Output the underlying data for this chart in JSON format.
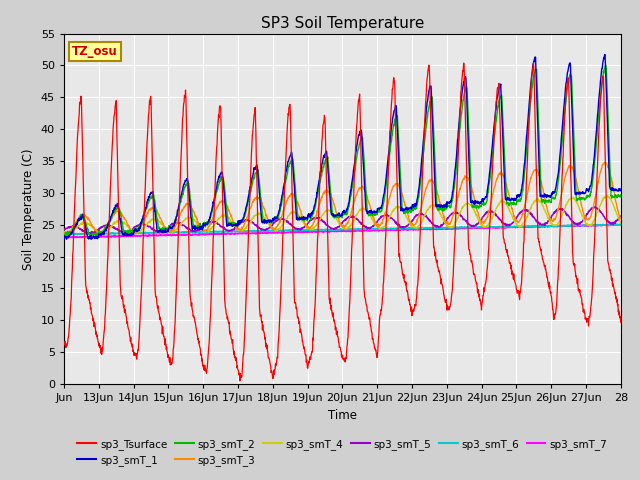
{
  "title": "SP3 Soil Temperature",
  "xlabel": "Time",
  "ylabel": "Soil Temperature (C)",
  "ylim": [
    0,
    55
  ],
  "yticks": [
    0,
    5,
    10,
    15,
    20,
    25,
    30,
    35,
    40,
    45,
    50,
    55
  ],
  "tz_label": "TZ_osu",
  "tz_bg": "#ffff99",
  "tz_border": "#aa8800",
  "fig_bg": "#d0d0d0",
  "plot_bg": "#e8e8e8",
  "grid_color": "#ffffff",
  "series_colors": {
    "sp3_Tsurface": "#ff0000",
    "sp3_smT_1": "#0000cc",
    "sp3_smT_2": "#00bb00",
    "sp3_smT_3": "#ff8800",
    "sp3_smT_4": "#cccc00",
    "sp3_smT_5": "#9900cc",
    "sp3_smT_6": "#00cccc",
    "sp3_smT_7": "#ff00ff"
  },
  "x_tick_labels": [
    "Jun",
    "13Jun",
    "14Jun",
    "15Jun",
    "16Jun",
    "17Jun",
    "18Jun",
    "19Jun",
    "20Jun",
    "21Jun",
    "22Jun",
    "23Jun",
    "24Jun",
    "25Jun",
    "26Jun",
    "27Jun",
    "28"
  ],
  "surface_peaks": [
    45,
    44,
    45,
    46,
    44,
    43,
    44,
    42,
    45,
    48,
    50,
    50,
    47,
    50,
    48,
    48
  ],
  "surface_mins": [
    6,
    5,
    4,
    3,
    2,
    1,
    3,
    4,
    4,
    11,
    12,
    12,
    15,
    14,
    10,
    10
  ],
  "n_days": 16
}
